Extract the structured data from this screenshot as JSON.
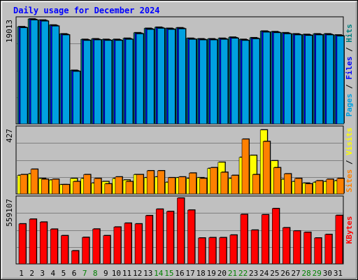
{
  "chart_data": {
    "type": "bar",
    "title": "Daily usage for December 2024",
    "categories": [
      "1",
      "2",
      "3",
      "4",
      "5",
      "6",
      "7",
      "8",
      "9",
      "10",
      "11",
      "12",
      "13",
      "14",
      "15",
      "16",
      "17",
      "18",
      "19",
      "20",
      "21",
      "22",
      "23",
      "24",
      "25",
      "26",
      "27",
      "28",
      "29",
      "30",
      "31"
    ],
    "weekend_days": [
      "7",
      "8",
      "14",
      "15",
      "21",
      "22",
      "28",
      "29"
    ],
    "panels": [
      {
        "name": "top",
        "max_label": "19013",
        "ymax": 19013,
        "right_label": [
          {
            "text": "Pages",
            "color": "#00a0e0"
          },
          {
            "text": " / ",
            "color": "#000000"
          },
          {
            "text": "Files",
            "color": "#0000ff"
          },
          {
            "text": " / ",
            "color": "#000000"
          },
          {
            "text": "Hits",
            "color": "#008080"
          }
        ],
        "series": [
          {
            "name": "Hits",
            "color": "#008080",
            "values": [
              17600,
              19000,
              18800,
              17900,
              16300,
              9700,
              15300,
              15400,
              15300,
              15300,
              15500,
              16500,
              17300,
              17500,
              17300,
              17400,
              15500,
              15400,
              15400,
              15500,
              15700,
              15300,
              15600,
              16800,
              16700,
              16500,
              16300,
              16200,
              16300,
              16300,
              16100
            ]
          },
          {
            "name": "Files",
            "color": "#0000ff",
            "values": [
              17500,
              18900,
              18700,
              17800,
              16200,
              9600,
              15200,
              15300,
              15200,
              15200,
              15400,
              16400,
              17200,
              17400,
              17200,
              17300,
              15400,
              15300,
              15300,
              15400,
              15600,
              15200,
              15500,
              16700,
              16600,
              16400,
              16200,
              16100,
              16200,
              16200,
              16000
            ]
          },
          {
            "name": "Pages",
            "color": "#00a0e0",
            "values": [
              17400,
              18800,
              18600,
              17700,
              16100,
              9500,
              15100,
              15200,
              15100,
              15100,
              15300,
              16300,
              17100,
              17300,
              17100,
              17200,
              15300,
              15200,
              15200,
              15300,
              15500,
              15100,
              15400,
              16600,
              16500,
              16300,
              16100,
              16000,
              16100,
              16100,
              15900
            ]
          }
        ]
      },
      {
        "name": "middle",
        "max_label": "427",
        "ymax": 427,
        "right_label": [
          {
            "text": "Sites",
            "color": "#ff8000"
          },
          {
            "text": " / ",
            "color": "#000000"
          },
          {
            "text": "Visits",
            "color": "#ffff00"
          }
        ],
        "series": [
          {
            "name": "Visits",
            "color": "#ffff00",
            "values": [
              120,
              130,
              100,
              90,
              60,
              100,
              100,
              70,
              80,
              100,
              90,
              125,
              105,
              110,
              75,
              105,
              100,
              105,
              165,
              205,
              100,
              237,
              250,
              415,
              215,
              95,
              80,
              70,
              75,
              80,
              85
            ]
          },
          {
            "name": "Sites",
            "color": "#ff8000",
            "values": [
              125,
              160,
              95,
              95,
              60,
              80,
              125,
              100,
              65,
              110,
              80,
              125,
              150,
              150,
              105,
              110,
              135,
              100,
              170,
              140,
              120,
              355,
              125,
              340,
              170,
              130,
              100,
              65,
              85,
              95,
              100
            ]
          }
        ]
      },
      {
        "name": "bottom",
        "max_label": "559107",
        "ymax": 559107,
        "right_label": [
          {
            "text": "KBytes",
            "color": "#ff0000"
          }
        ],
        "series": [
          {
            "name": "KBytes",
            "color": "#ff0000",
            "values": [
              340000,
              380000,
              355000,
              295000,
              240000,
              111000,
              225000,
              296000,
              240000,
              313000,
              346000,
              340000,
              410000,
              465000,
              445000,
              559107,
              457000,
              220000,
              223000,
              223000,
              245000,
              420000,
              287000,
              418000,
              470000,
              307000,
              280000,
              268000,
              220000,
              250000,
              412000
            ]
          }
        ]
      }
    ]
  }
}
